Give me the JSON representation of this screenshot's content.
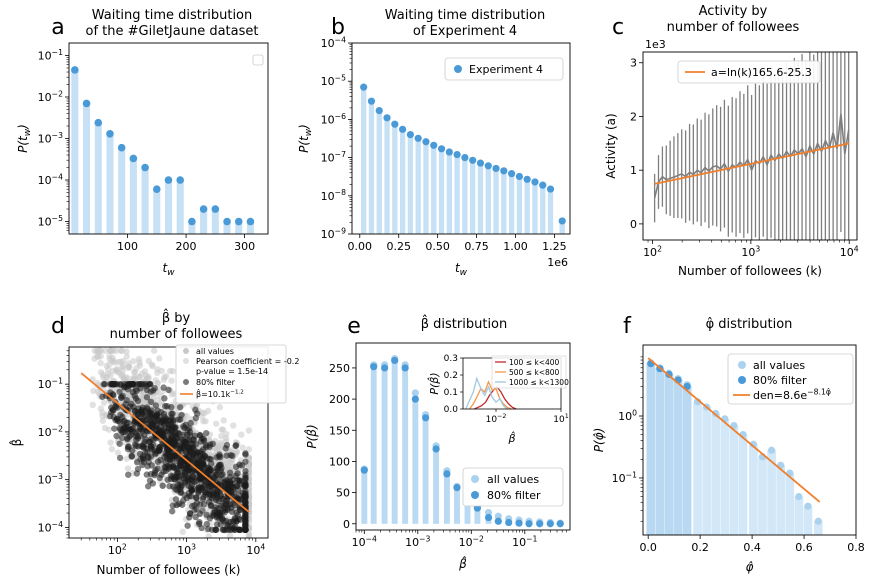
{
  "chart_data": [
    {
      "id": "a",
      "type": "bar+scatter",
      "panel_letter": "a",
      "title": "Waiting time distribution\nof the #GiletJaune dataset",
      "xlabel": "t_w",
      "ylabel": "P(t_w)",
      "xscale": "linear",
      "yscale": "log",
      "xlim": [
        0,
        340
      ],
      "ylim": [
        5e-06,
        0.2
      ],
      "xticks": [
        100,
        200,
        300
      ],
      "yticks": [
        1e-05,
        0.0001,
        0.001,
        0.01,
        0.1
      ],
      "ytick_labels": [
        "10^-5",
        "10^-4",
        "10^-3",
        "10^-2",
        "10^-1"
      ],
      "legend_placement": "top-right",
      "legend_entries": [],
      "x": [
        10,
        30,
        50,
        70,
        90,
        110,
        130,
        150,
        170,
        190,
        210,
        230,
        250,
        270,
        290,
        310
      ],
      "values": [
        0.045,
        0.007,
        0.0024,
        0.0013,
        0.0006,
        0.00033,
        0.0002,
        6e-05,
        0.0001,
        0.0001,
        1e-05,
        2e-05,
        2e-05,
        1e-05,
        1e-05,
        1e-05
      ],
      "colors": {
        "bar": "#c6e0f5",
        "marker": "#4a9ad8"
      }
    },
    {
      "id": "b",
      "type": "bar+scatter",
      "panel_letter": "b",
      "title": "Waiting time distribution\nof Experiment 4",
      "xlabel": "t_w",
      "ylabel": "P(t_w)",
      "xscale": "linear",
      "yscale": "log",
      "xlim": [
        -50000,
        1350000
      ],
      "ylim": [
        1e-09,
        0.0001
      ],
      "xticks": [
        0,
        250000,
        500000,
        750000,
        1000000,
        1250000
      ],
      "xtick_labels": [
        "0.00",
        "0.25",
        "0.50",
        "0.75",
        "1.00",
        "1.25"
      ],
      "x_offset_label": "1e6",
      "yticks": [
        1e-09,
        1e-08,
        1e-07,
        1e-06,
        1e-05,
        0.0001
      ],
      "ytick_labels": [
        "10^-9",
        "10^-8",
        "10^-7",
        "10^-6",
        "10^-5",
        "10^-4"
      ],
      "legend_placement": "top-right",
      "legend_entries": [
        "Experiment 4"
      ],
      "x": [
        25000,
        75000,
        125000,
        175000,
        225000,
        275000,
        325000,
        375000,
        425000,
        475000,
        525000,
        575000,
        625000,
        675000,
        725000,
        775000,
        825000,
        875000,
        925000,
        975000,
        1025000,
        1075000,
        1125000,
        1175000,
        1225000,
        1300000
      ],
      "values": [
        7e-06,
        3e-06,
        1.7e-06,
        1.1e-06,
        7.5e-07,
        5.5e-07,
        4e-07,
        3.2e-07,
        2.6e-07,
        2.1e-07,
        1.7e-07,
        1.4e-07,
        1.2e-07,
        1e-07,
        8.5e-08,
        7.2e-08,
        6.1e-08,
        5.2e-08,
        4.5e-08,
        3.8e-08,
        3.2e-08,
        2.7e-08,
        2.3e-08,
        1.9e-08,
        1.5e-08,
        2.2e-09
      ],
      "colors": {
        "bar": "#c6e0f5",
        "marker": "#4a9ad8"
      }
    },
    {
      "id": "c",
      "type": "line",
      "panel_letter": "c",
      "title": "Activity by\nnumber of followees",
      "xlabel": "Number of followees (k)",
      "ylabel": "Activity (a)",
      "xscale": "log",
      "yscale": "linear",
      "xlim": [
        80,
        12000
      ],
      "ylim": [
        -300,
        3200
      ],
      "xticks": [
        100,
        1000,
        10000
      ],
      "xtick_labels": [
        "10^2",
        "10^3",
        "10^4"
      ],
      "yticks": [
        0,
        1000,
        2000,
        3000
      ],
      "ytick_labels": [
        "0",
        "1",
        "2",
        "3"
      ],
      "y_offset_label": "1e3",
      "legend_placement": "top-left",
      "legend_entries": [
        "a=ln(k)165.6-25.3"
      ],
      "fit": {
        "label": "a=ln(k)165.6-25.3",
        "slope": 165.6,
        "intercept": -25.3,
        "x_range": [
          105,
          10000
        ]
      },
      "x": [
        105,
        115,
        126,
        138,
        151,
        165,
        181,
        198,
        217,
        238,
        260,
        285,
        312,
        342,
        374,
        410,
        449,
        492,
        538,
        590,
        646,
        707,
        775,
        848,
        929,
        1017,
        1114,
        1220,
        1336,
        1463,
        1603,
        1755,
        1922,
        2105,
        2305,
        2525,
        2765,
        3028,
        3316,
        3632,
        3978,
        4356,
        4771,
        5225,
        5722,
        6267,
        6863,
        7516,
        8231,
        9015,
        9873
      ],
      "values": [
        480,
        780,
        880,
        820,
        850,
        870,
        900,
        930,
        880,
        960,
        920,
        1000,
        950,
        1050,
        980,
        1060,
        1080,
        1020,
        1120,
        980,
        1100,
        1050,
        1150,
        1080,
        1200,
        1000,
        1180,
        1120,
        1250,
        1100,
        1280,
        1180,
        1300,
        1220,
        1350,
        1250,
        1380,
        1300,
        1400,
        1250,
        1450,
        1300,
        1500,
        1350,
        1550,
        1400,
        1700,
        1400,
        2050,
        1300,
        1750
      ],
      "yerr": [
        450,
        500,
        560,
        640,
        700,
        760,
        790,
        830,
        860,
        900,
        930,
        960,
        990,
        1020,
        1060,
        1090,
        1130,
        1160,
        1190,
        1220,
        1260,
        1290,
        1320,
        1340,
        1380,
        1400,
        1430,
        1460,
        1490,
        1510,
        1540,
        1570,
        1600,
        1620,
        1650,
        1680,
        1710,
        1740,
        1760,
        1790,
        1820,
        1850,
        1900,
        1950,
        2000,
        2050,
        2100,
        2150,
        2200,
        2300,
        2400
      ],
      "colors": {
        "line": "#7f7f7f",
        "fit": "#f07f2c"
      }
    },
    {
      "id": "d",
      "type": "scatter",
      "panel_letter": "d",
      "title": "β̂ by\nnumber of followees",
      "xlabel": "Number of followees (k)",
      "ylabel": "β̂",
      "xscale": "log",
      "yscale": "log",
      "xlim": [
        20,
        15000
      ],
      "ylim": [
        6e-05,
        0.6
      ],
      "xticks": [
        100,
        1000,
        10000
      ],
      "xtick_labels": [
        "10^2",
        "10^3",
        "10^4"
      ],
      "yticks": [
        0.0001,
        0.001,
        0.01,
        0.1
      ],
      "ytick_labels": [
        "10^-4",
        "10^-3",
        "10^-2",
        "10^-1"
      ],
      "legend_placement": "top-right",
      "legend_entries": [
        "all values",
        "Pearson coefficient = -0.2",
        "p-value = 1.5e-14",
        "80% filter",
        "β̂=10.1k^-1.2"
      ],
      "fit": {
        "label": "β̂=10.1k^-1.2",
        "coef": 10.1,
        "exponent": -1.2,
        "x_range": [
          30,
          8000
        ]
      },
      "point_count": {
        "all": 1200,
        "filter": 1000
      },
      "colors": {
        "all": "#c8c8c8",
        "filter": "#1c1c1c",
        "fit": "#f07f2c"
      }
    },
    {
      "id": "e",
      "type": "bar+scatter",
      "panel_letter": "e",
      "title": "β̂ distribution",
      "xlabel": "β̂",
      "ylabel": "P(β̂)",
      "xscale": "log",
      "yscale": "linear",
      "xlim": [
        7e-05,
        0.7
      ],
      "ylim": [
        -10,
        290
      ],
      "xticks": [
        0.0001,
        0.001,
        0.01,
        0.1
      ],
      "xtick_labels": [
        "10^-4",
        "10^-3",
        "10^-2",
        "10^-1"
      ],
      "yticks": [
        0,
        50,
        100,
        150,
        200,
        250
      ],
      "legend_placement": "bottom-right",
      "legend_entries": [
        "all values",
        "80% filter"
      ],
      "x": [
        0.0001,
        0.00015,
        0.00024,
        0.00037,
        0.00058,
        0.0009,
        0.0014,
        0.0022,
        0.0035,
        0.0054,
        0.0085,
        0.013,
        0.021,
        0.032,
        0.05,
        0.078,
        0.12,
        0.19,
        0.3,
        0.46
      ],
      "values_all": [
        88,
        255,
        255,
        265,
        255,
        210,
        175,
        125,
        85,
        60,
        40,
        28,
        18,
        12,
        8,
        6,
        4,
        3,
        2,
        1
      ],
      "values_filter": [
        86,
        252,
        250,
        262,
        250,
        200,
        170,
        120,
        80,
        58,
        38,
        25,
        10,
        4,
        2,
        1,
        0,
        0,
        0,
        0
      ],
      "inset": {
        "ylabel": "P(β̂)",
        "xlabel": "β̂",
        "xscale": "log",
        "xlim": [
          0.0003,
          10
        ],
        "ylim": [
          0,
          0.3
        ],
        "xticks": [
          0.01,
          10
        ],
        "xtick_labels": [
          "10^-2",
          "10^1"
        ],
        "yticks": [
          0.0,
          0.1,
          0.2,
          0.3
        ],
        "ytick_labels": [
          "0.0",
          "0.1",
          "0.2",
          "0.3"
        ],
        "series": [
          {
            "name": "100 ≤ k<400",
            "color": "#c0282d",
            "x": [
              0.001,
              0.0015,
              0.0022,
              0.0033,
              0.005,
              0.0075,
              0.011,
              0.017,
              0.025,
              0.038,
              0.057,
              0.085
            ],
            "y": [
              0.0,
              0.01,
              0.02,
              0.04,
              0.08,
              0.11,
              0.13,
              0.1,
              0.06,
              0.03,
              0.01,
              0.0
            ]
          },
          {
            "name": "500 ≤ k<800",
            "color": "#f29a4a",
            "x": [
              0.0006,
              0.0009,
              0.0013,
              0.002,
              0.003,
              0.0045,
              0.0067,
              0.01,
              0.015,
              0.022,
              0.033,
              0.05
            ],
            "y": [
              0.0,
              0.03,
              0.07,
              0.12,
              0.1,
              0.16,
              0.11,
              0.12,
              0.06,
              0.03,
              0.01,
              0.0
            ]
          },
          {
            "name": "1000 ≤ k<1300",
            "color": "#9ecae1",
            "x": [
              0.0004,
              0.0006,
              0.0009,
              0.0013,
              0.002,
              0.003,
              0.0045,
              0.0067,
              0.01,
              0.015,
              0.022,
              0.033
            ],
            "y": [
              0.0,
              0.05,
              0.1,
              0.18,
              0.12,
              0.08,
              0.13,
              0.07,
              0.04,
              0.06,
              0.02,
              0.0
            ]
          }
        ]
      },
      "colors": {
        "bar_all": "#cfe5f7",
        "bar_filter": "#a9d0ef",
        "marker_all": "#aad2ee",
        "marker_filter": "#4a9ad8"
      }
    },
    {
      "id": "f",
      "type": "bar+scatter",
      "panel_letter": "f",
      "title": "φ̂ distribution",
      "xlabel": "φ̂",
      "ylabel": "P(φ̂)",
      "xscale": "linear",
      "yscale": "log",
      "xlim": [
        -0.02,
        0.8
      ],
      "ylim": [
        0.012,
        14
      ],
      "xticks": [
        0.0,
        0.2,
        0.4,
        0.6,
        0.8
      ],
      "xtick_labels": [
        "0.0",
        "0.2",
        "0.4",
        "0.6",
        "0.8"
      ],
      "yticks": [
        0.1,
        1
      ],
      "ytick_labels": [
        "10^-1",
        "10^0"
      ],
      "legend_placement": "top-right",
      "legend_entries": [
        "all values",
        "80% filter",
        "den=8.6e^-8.1φ̂"
      ],
      "fit": {
        "label": "den=8.6e^-8.1φ̂",
        "coef": 8.6,
        "rate": -8.1,
        "x_range": [
          0.0,
          0.66
        ]
      },
      "x": [
        0.01,
        0.045,
        0.08,
        0.115,
        0.15,
        0.19,
        0.225,
        0.26,
        0.295,
        0.33,
        0.365,
        0.405,
        0.44,
        0.475,
        0.51,
        0.545,
        0.58,
        0.615,
        0.655
      ],
      "values_all": [
        7.2,
        6.0,
        4.9,
        4.0,
        3.2,
        1.7,
        1.4,
        1.1,
        0.9,
        0.7,
        0.5,
        0.35,
        0.22,
        0.28,
        0.16,
        0.12,
        0.05,
        0.035,
        0.02
      ],
      "values_filter": [
        7.0,
        5.8,
        4.7,
        3.8,
        3.0,
        0,
        0,
        0,
        0,
        0,
        0,
        0,
        0,
        0,
        0,
        0,
        0,
        0,
        0
      ],
      "colors": {
        "bar_all": "#d2e7f7",
        "bar_filter": "#a9d0ef",
        "marker_all": "#aad2ee",
        "marker_filter": "#4a9ad8",
        "fit": "#f07f2c"
      }
    }
  ]
}
